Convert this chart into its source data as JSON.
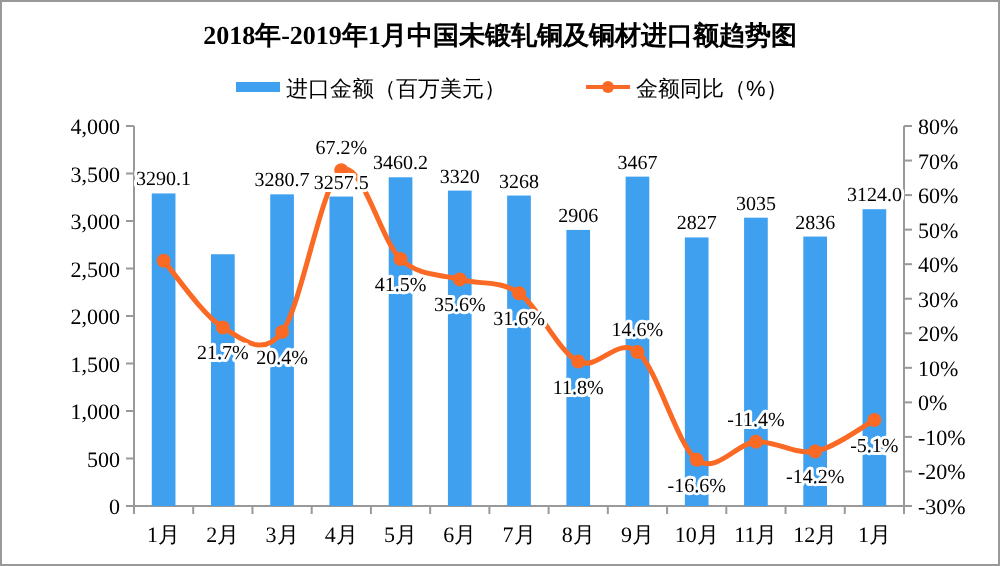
{
  "chart_data": {
    "type": "bar",
    "title": "2018年-2019年1月中国未锻轧铜及铜材进口额趋势图",
    "categories": [
      "1月",
      "2月",
      "3月",
      "4月",
      "5月",
      "6月",
      "7月",
      "8月",
      "9月",
      "10月",
      "11月",
      "12月",
      "1月"
    ],
    "legend": "top",
    "ylim": [
      0,
      4000
    ],
    "yticks": [
      {
        "value": 0,
        "label": "0"
      },
      {
        "value": 500,
        "label": "500"
      },
      {
        "value": 1000,
        "label": "1,000"
      },
      {
        "value": 1500,
        "label": "1,500"
      },
      {
        "value": 2000,
        "label": "2,000"
      },
      {
        "value": 2500,
        "label": "2,500"
      },
      {
        "value": 3000,
        "label": "3,000"
      },
      {
        "value": 3500,
        "label": "3,500"
      },
      {
        "value": 4000,
        "label": "4,000"
      }
    ],
    "y2lim": [
      -30,
      80
    ],
    "y2ticks": [
      {
        "value": -30,
        "label": "-30%"
      },
      {
        "value": -20,
        "label": "-20%"
      },
      {
        "value": -10,
        "label": "-10%"
      },
      {
        "value": 0,
        "label": "0%"
      },
      {
        "value": 10,
        "label": "10%"
      },
      {
        "value": 20,
        "label": "20%"
      },
      {
        "value": 30,
        "label": "30%"
      },
      {
        "value": 40,
        "label": "40%"
      },
      {
        "value": 50,
        "label": "50%"
      },
      {
        "value": 60,
        "label": "60%"
      },
      {
        "value": 70,
        "label": "70%"
      },
      {
        "value": 80,
        "label": "80%"
      }
    ],
    "series": [
      {
        "name": "进口金额（百万美元）",
        "color": "#3fa0f0",
        "values": [
          3290.1,
          2650,
          3280.7,
          3257.5,
          3460.2,
          3320,
          3268,
          2906,
          3467,
          2827,
          3035,
          2836,
          3124.0
        ],
        "value_labels": [
          "3290.1",
          null,
          "3280.7",
          "3257.5",
          "3460.2",
          "3320",
          "3268",
          "2906",
          "3467",
          "2827",
          "3035",
          "2836",
          "3124.0"
        ]
      },
      {
        "name": "金额同比（%）",
        "type": "line",
        "axis": "y2",
        "color": "#fa6a24",
        "marker": "circle",
        "values": [
          41,
          21.7,
          20.4,
          67.2,
          41.5,
          35.6,
          31.6,
          11.8,
          14.6,
          -16.6,
          -11.4,
          -14.2,
          -5.1
        ],
        "value_labels": [
          null,
          "21.7%",
          "20.4%",
          "67.2%",
          "41.5%",
          "35.6%",
          "31.6%",
          "11.8%",
          "14.6%",
          "-16.6%",
          "-11.4%",
          "-14.2%",
          "-5.1%"
        ]
      }
    ]
  }
}
